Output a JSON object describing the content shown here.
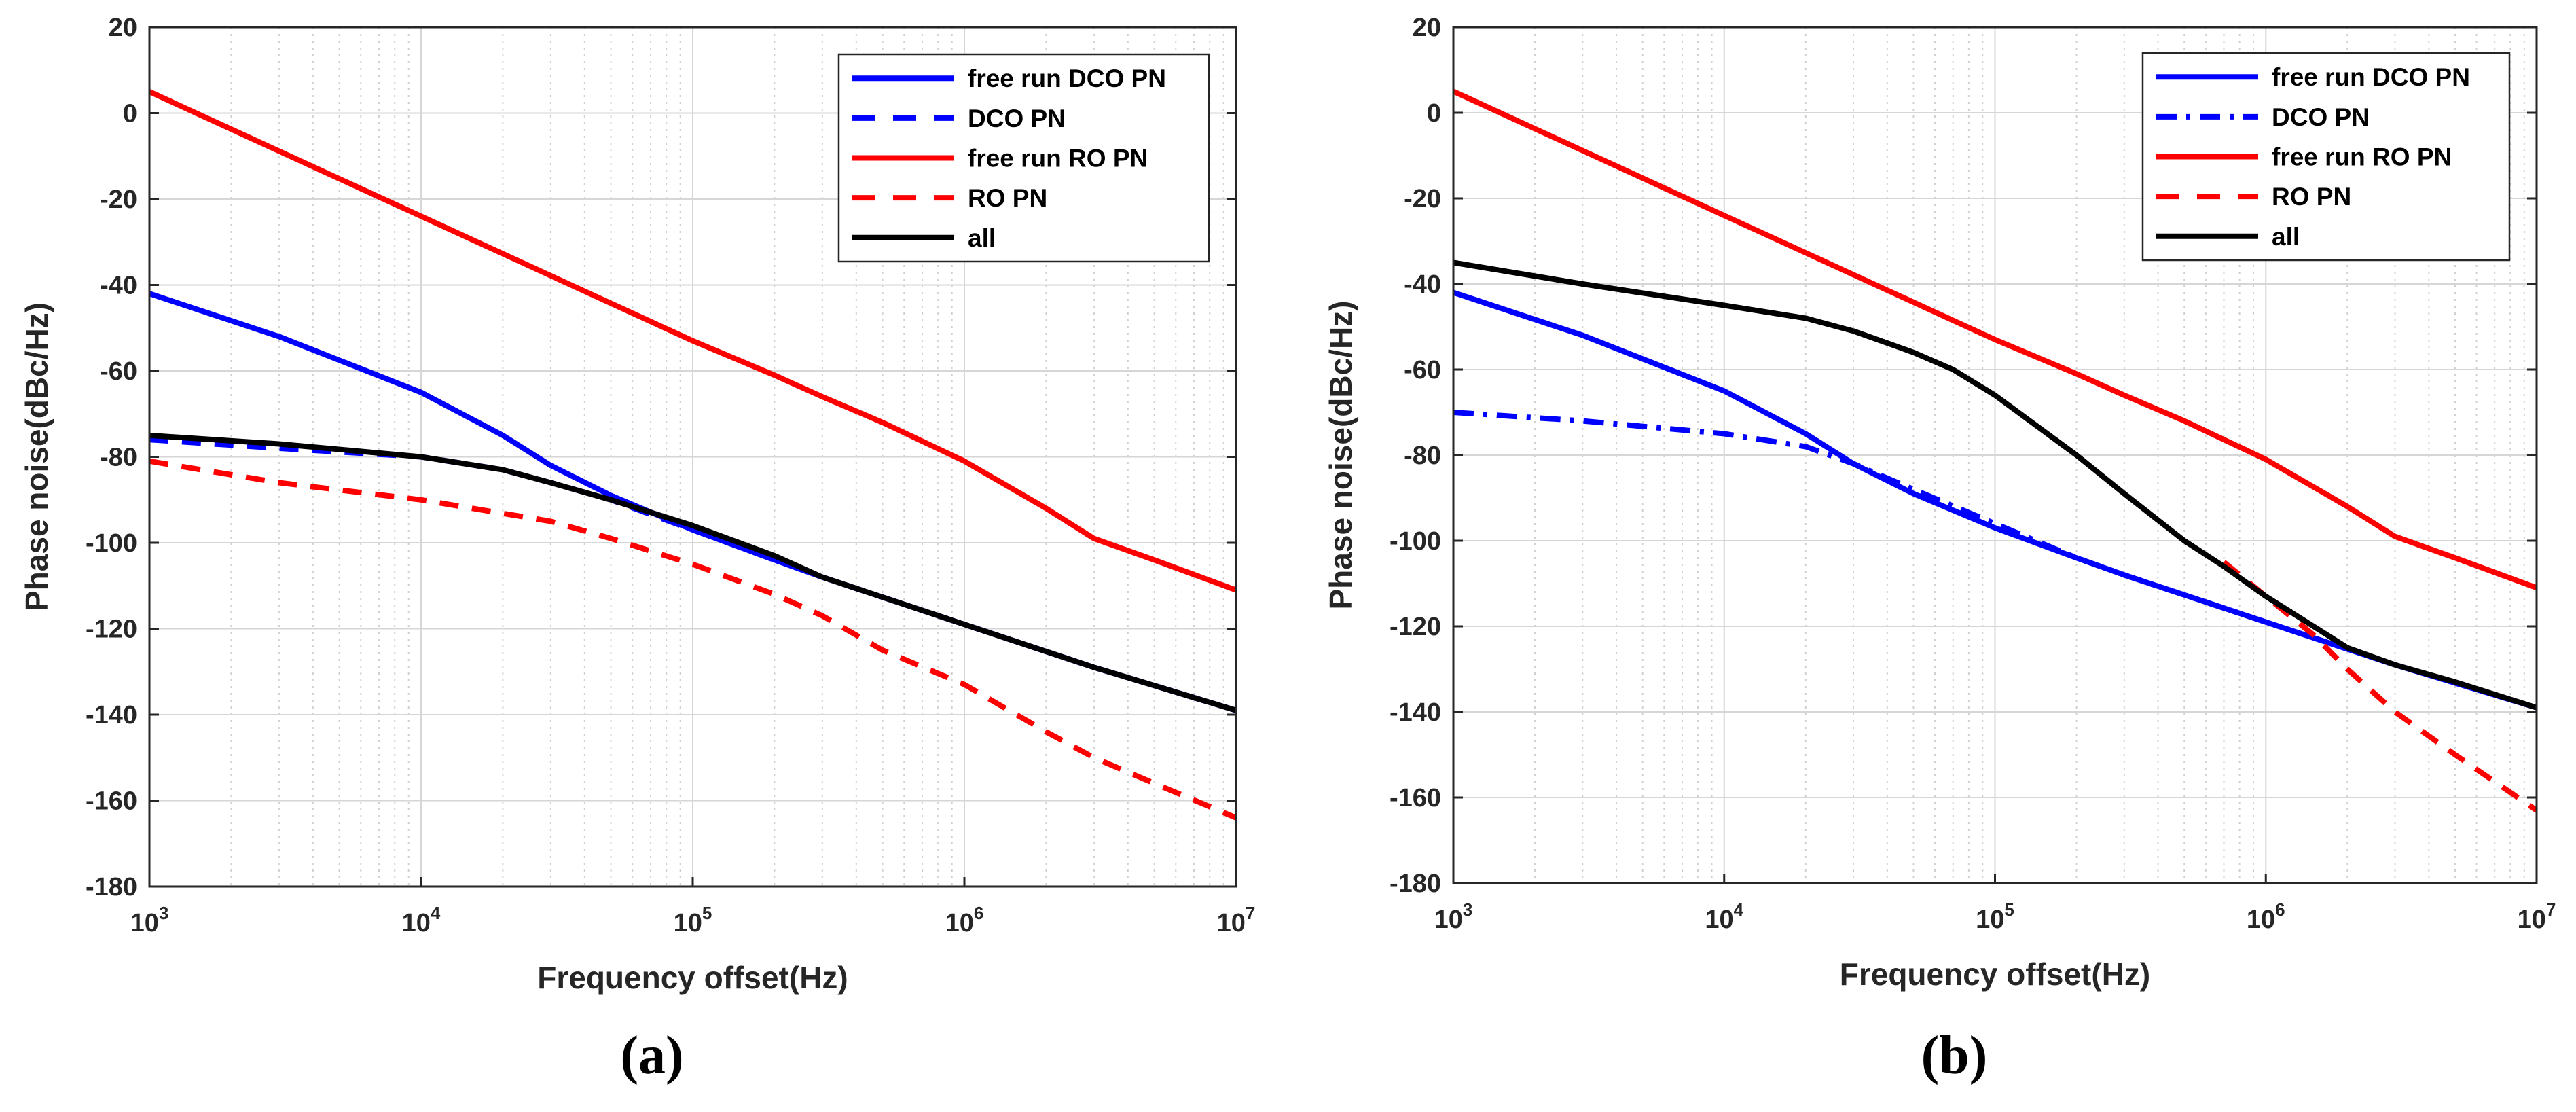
{
  "chart_data": [
    {
      "type": "line",
      "panel_label": "(a)",
      "xlabel": "Frequency offset(Hz)",
      "ylabel": "Phase noise(dBc/Hz)",
      "xscale": "log",
      "xlim": [
        1000,
        10000000
      ],
      "ylim": [
        -180,
        20
      ],
      "xticks": [
        1000,
        10000,
        100000,
        1000000,
        10000000
      ],
      "xtick_labels": [
        {
          "base": "10",
          "exp": "3"
        },
        {
          "base": "10",
          "exp": "4"
        },
        {
          "base": "10",
          "exp": "5"
        },
        {
          "base": "10",
          "exp": "6"
        },
        {
          "base": "10",
          "exp": "7"
        }
      ],
      "yticks": [
        20,
        0,
        -20,
        -40,
        -60,
        -80,
        -100,
        -120,
        -140,
        -160,
        -180
      ],
      "ytick_labels": [
        "20",
        "0",
        "-20",
        "-40",
        "-60",
        "-80",
        "-100",
        "-120",
        "-140",
        "-160",
        "-180"
      ],
      "grid": true,
      "legend_position": "top-right",
      "series": [
        {
          "name": "free run DCO PN",
          "color": "#0000ff",
          "style": "solid",
          "x": [
            1000,
            3000,
            10000,
            20000,
            30000,
            50000,
            100000,
            200000,
            300000,
            1000000,
            3000000,
            10000000
          ],
          "y": [
            -42,
            -52,
            -65,
            -75,
            -82,
            -89,
            -97,
            -104,
            -108,
            -119,
            -129,
            -139
          ]
        },
        {
          "name": "DCO PN",
          "color": "#0000ff",
          "style": "dashed",
          "x": [
            1000,
            3000,
            10000,
            20000,
            30000,
            50000,
            100000,
            200000,
            300000,
            1000000,
            3000000,
            10000000
          ],
          "y": [
            -76,
            -78,
            -80,
            -83,
            -86,
            -90,
            -97,
            -104,
            -108,
            -119,
            -129,
            -139
          ]
        },
        {
          "name": "free run RO PN",
          "color": "#ff0000",
          "style": "solid",
          "x": [
            1000,
            10000,
            100000,
            200000,
            300000,
            500000,
            1000000,
            2000000,
            3000000,
            5000000,
            10000000
          ],
          "y": [
            5,
            -24,
            -53,
            -61,
            -66,
            -72,
            -81,
            -92,
            -99,
            -104,
            -111
          ]
        },
        {
          "name": "RO PN",
          "color": "#ff0000",
          "style": "dashed",
          "x": [
            1000,
            3000,
            10000,
            30000,
            50000,
            100000,
            200000,
            300000,
            500000,
            1000000,
            2000000,
            3000000,
            5000000,
            10000000
          ],
          "y": [
            -81,
            -86,
            -90,
            -95,
            -99,
            -105,
            -112,
            -117,
            -125,
            -133,
            -144,
            -150,
            -156,
            -164
          ]
        },
        {
          "name": "all",
          "color": "#000000",
          "style": "solid",
          "x": [
            1000,
            3000,
            10000,
            20000,
            30000,
            50000,
            100000,
            200000,
            300000,
            1000000,
            3000000,
            10000000
          ],
          "y": [
            -75,
            -77,
            -80,
            -83,
            -86,
            -90,
            -96,
            -103,
            -108,
            -119,
            -129,
            -139
          ]
        }
      ]
    },
    {
      "type": "line",
      "panel_label": "(b)",
      "xlabel": "Frequency offset(Hz)",
      "ylabel": "Phase noise(dBc/Hz)",
      "xscale": "log",
      "xlim": [
        1000,
        10000000
      ],
      "ylim": [
        -180,
        20
      ],
      "xticks": [
        1000,
        10000,
        100000,
        1000000,
        10000000
      ],
      "xtick_labels": [
        {
          "base": "10",
          "exp": "3"
        },
        {
          "base": "10",
          "exp": "4"
        },
        {
          "base": "10",
          "exp": "5"
        },
        {
          "base": "10",
          "exp": "6"
        },
        {
          "base": "10",
          "exp": "7"
        }
      ],
      "yticks": [
        20,
        0,
        -20,
        -40,
        -60,
        -80,
        -100,
        -120,
        -140,
        -160,
        -180
      ],
      "ytick_labels": [
        "20",
        "0",
        "-20",
        "-40",
        "-60",
        "-80",
        "-100",
        "-120",
        "-140",
        "-160",
        "-180"
      ],
      "grid": true,
      "legend_position": "top-right",
      "series": [
        {
          "name": "free run DCO PN",
          "color": "#0000ff",
          "style": "solid",
          "x": [
            1000,
            3000,
            10000,
            20000,
            30000,
            50000,
            100000,
            200000,
            300000,
            1000000,
            3000000,
            10000000
          ],
          "y": [
            -42,
            -52,
            -65,
            -75,
            -82,
            -89,
            -97,
            -104,
            -108,
            -119,
            -129,
            -139
          ]
        },
        {
          "name": "DCO PN",
          "color": "#0000ff",
          "style": "dashdot",
          "x": [
            1000,
            3000,
            10000,
            20000,
            30000,
            50000,
            100000,
            200000,
            300000,
            1000000,
            3000000,
            10000000
          ],
          "y": [
            -70,
            -72,
            -75,
            -78,
            -82,
            -88,
            -96,
            -104,
            -108,
            -119,
            -129,
            -139
          ]
        },
        {
          "name": "free run RO PN",
          "color": "#ff0000",
          "style": "solid",
          "x": [
            1000,
            10000,
            100000,
            200000,
            300000,
            500000,
            1000000,
            2000000,
            3000000,
            5000000,
            10000000
          ],
          "y": [
            5,
            -24,
            -53,
            -61,
            -66,
            -72,
            -81,
            -92,
            -99,
            -104,
            -111
          ]
        },
        {
          "name": "RO PN",
          "color": "#ff0000",
          "style": "dashed",
          "x": [
            700000,
            1000000,
            1500000,
            2000000,
            3000000,
            5000000,
            10000000
          ],
          "y": [
            -105,
            -113,
            -122,
            -130,
            -140,
            -150,
            -163
          ]
        },
        {
          "name": "all",
          "color": "#000000",
          "style": "solid",
          "x": [
            1000,
            3000,
            10000,
            20000,
            30000,
            50000,
            70000,
            100000,
            200000,
            300000,
            500000,
            700000,
            1000000,
            1500000,
            2000000,
            3000000,
            5000000,
            10000000
          ],
          "y": [
            -35,
            -40,
            -45,
            -48,
            -51,
            -56,
            -60,
            -66,
            -80,
            -89,
            -100,
            -106,
            -113,
            -120,
            -125,
            -129,
            -133,
            -139
          ]
        }
      ]
    }
  ]
}
